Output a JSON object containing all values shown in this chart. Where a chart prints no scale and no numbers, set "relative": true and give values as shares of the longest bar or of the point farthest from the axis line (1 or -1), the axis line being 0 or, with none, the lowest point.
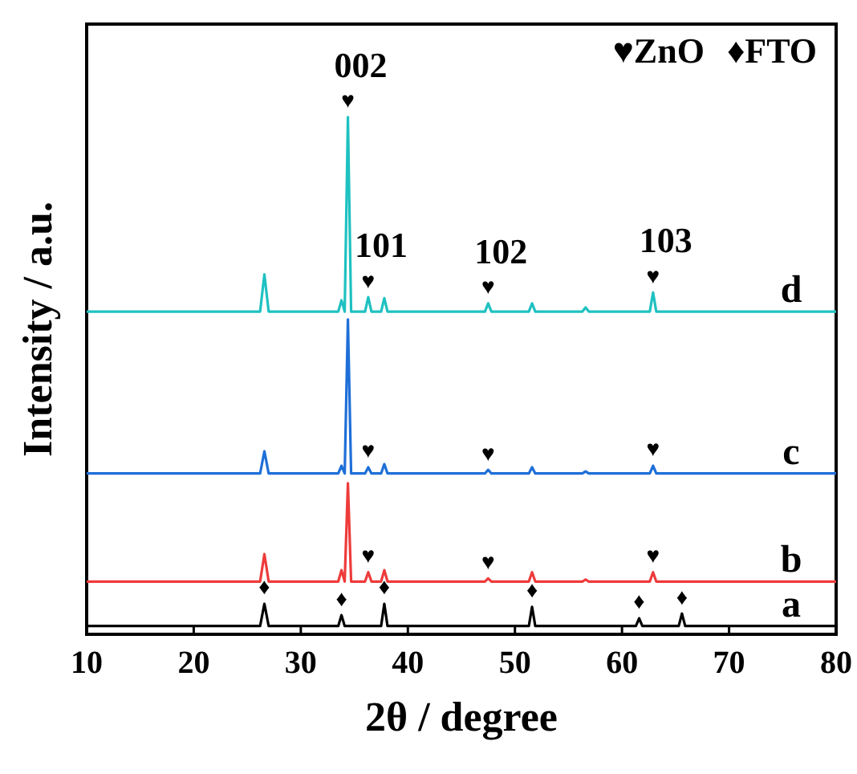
{
  "chart_data": {
    "type": "line",
    "relative": true,
    "xlabel": "2θ / degree",
    "ylabel": "Intensity / a.u.",
    "xlim": [
      10,
      80
    ],
    "xticks": [
      10,
      20,
      30,
      40,
      50,
      60,
      70,
      80
    ],
    "marker": "none",
    "line_style": "solid",
    "grid": false,
    "x": [
      10,
      26.2,
      26.6,
      27.0,
      33.5,
      33.8,
      34.1,
      34.4,
      34.7,
      36.0,
      36.3,
      36.6,
      37.5,
      37.8,
      38.1,
      47.2,
      47.5,
      47.8,
      51.3,
      51.6,
      51.9,
      56.3,
      56.6,
      56.9,
      61.3,
      61.6,
      61.9,
      62.6,
      62.9,
      63.2,
      65.3,
      65.6,
      65.9,
      80
    ],
    "series": [
      {
        "name": "a",
        "color": "#000000",
        "values": [
          0.016,
          0.016,
          0.059,
          0.016,
          0.016,
          0.037,
          0.016,
          0.016,
          0.016,
          0.016,
          0.016,
          0.016,
          0.016,
          0.059,
          0.016,
          0.016,
          0.016,
          0.016,
          0.016,
          0.053,
          0.016,
          0.016,
          0.016,
          0.016,
          0.016,
          0.031,
          0.016,
          0.016,
          0.016,
          0.016,
          0.016,
          0.04,
          0.016,
          0.016
        ]
      },
      {
        "name": "b",
        "color": "#ee3b3b",
        "values": [
          0.102,
          0.102,
          0.155,
          0.102,
          0.102,
          0.124,
          0.102,
          0.292,
          0.102,
          0.102,
          0.12,
          0.102,
          0.102,
          0.124,
          0.102,
          0.102,
          0.108,
          0.102,
          0.102,
          0.12,
          0.102,
          0.102,
          0.106,
          0.102,
          0.102,
          0.102,
          0.102,
          0.102,
          0.12,
          0.102,
          0.102,
          0.102,
          0.102,
          0.102
        ]
      },
      {
        "name": "c",
        "color": "#1f6fd8",
        "values": [
          0.311,
          0.311,
          0.354,
          0.311,
          0.311,
          0.326,
          0.311,
          0.609,
          0.311,
          0.311,
          0.323,
          0.311,
          0.311,
          0.329,
          0.311,
          0.311,
          0.318,
          0.311,
          0.311,
          0.323,
          0.311,
          0.311,
          0.315,
          0.311,
          0.311,
          0.311,
          0.311,
          0.311,
          0.326,
          0.311,
          0.311,
          0.311,
          0.311,
          0.311
        ]
      },
      {
        "name": "d",
        "color": "#1fc1c1",
        "values": [
          0.624,
          0.624,
          0.696,
          0.624,
          0.624,
          0.646,
          0.624,
          1.0,
          0.624,
          0.624,
          0.652,
          0.624,
          0.624,
          0.65,
          0.624,
          0.624,
          0.64,
          0.624,
          0.624,
          0.64,
          0.624,
          0.624,
          0.632,
          0.624,
          0.624,
          0.624,
          0.624,
          0.624,
          0.661,
          0.624,
          0.624,
          0.624,
          0.624,
          0.624
        ]
      }
    ],
    "annotations": [
      "♥ZnO",
      "♦FTO",
      {
        "text": "002",
        "x": 34.4,
        "y": 1.0
      },
      {
        "text": "♥",
        "x": 34.4,
        "y": 1.0
      },
      {
        "text": "101",
        "x": 36.3,
        "y": 0.652
      },
      {
        "text": "♥",
        "x": 36.3,
        "y": 0.652
      },
      {
        "text": "102",
        "x": 47.5,
        "y": 0.64
      },
      {
        "text": "♥",
        "x": 47.5,
        "y": 0.64
      },
      {
        "text": "103",
        "x": 62.9,
        "y": 0.661
      },
      {
        "text": "♥",
        "x": 62.9,
        "y": 0.661
      },
      {
        "text": "♥",
        "x": 36.3,
        "y": 0.323
      },
      {
        "text": "♥",
        "x": 47.5,
        "y": 0.318
      },
      {
        "text": "♥",
        "x": 62.9,
        "y": 0.326
      },
      {
        "text": "♥",
        "x": 36.3,
        "y": 0.12
      },
      {
        "text": "♥",
        "x": 47.5,
        "y": 0.108
      },
      {
        "text": "♥",
        "x": 62.9,
        "y": 0.12
      },
      {
        "text": "♦",
        "x": 26.6,
        "y": 0.059
      },
      {
        "text": "♦",
        "x": 33.8,
        "y": 0.037
      },
      {
        "text": "♦",
        "x": 37.8,
        "y": 0.059
      },
      {
        "text": "♦",
        "x": 51.6,
        "y": 0.053
      },
      {
        "text": "♦",
        "x": 61.6,
        "y": 0.031
      },
      {
        "text": "♦",
        "x": 65.6,
        "y": 0.04
      }
    ]
  }
}
